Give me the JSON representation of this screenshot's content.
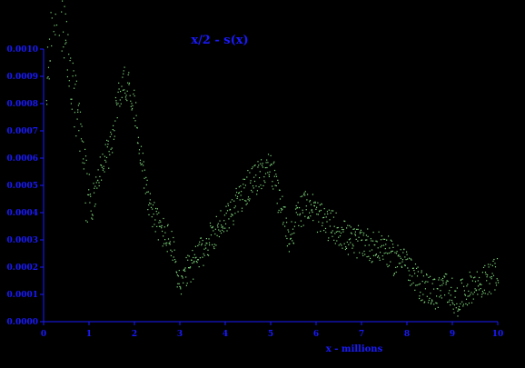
{
  "chart_data": {
    "type": "scatter",
    "title": "x/2  -  s(x)",
    "xlabel": "x - millions",
    "ylabel": "",
    "xlim": [
      0,
      10
    ],
    "ylim": [
      0,
      0.001
    ],
    "x_ticks": [
      "0",
      "1",
      "2",
      "3",
      "4",
      "5",
      "6",
      "7",
      "8",
      "9",
      "10"
    ],
    "y_ticks": [
      "0.0000",
      "0.0001",
      "0.0002",
      "0.0003",
      "0.0004",
      "0.0005",
      "0.0006",
      "0.0007",
      "0.0008",
      "0.0009",
      "0.0010"
    ],
    "colors": {
      "background": "#000000",
      "axes": "#1a1aff",
      "text": "#1a1aff",
      "points": "#7dd87a"
    },
    "grid": false,
    "series": [
      {
        "trend": {
          "x": [
            0.05,
            0.15,
            0.3,
            0.5,
            0.6,
            0.75,
            0.85,
            0.95,
            1.05,
            1.2,
            1.35,
            1.5,
            1.6,
            1.75,
            1.85,
            1.95,
            2.05,
            2.2,
            2.35,
            2.5,
            2.65,
            2.8,
            2.95,
            3.0,
            3.1,
            3.3,
            3.5,
            3.7,
            3.9,
            4.1,
            4.3,
            4.5,
            4.7,
            4.85,
            4.95,
            5.05,
            5.15,
            5.3,
            5.4,
            5.6,
            5.75,
            5.85,
            6.0,
            6.2,
            6.4,
            6.55,
            6.7,
            6.85,
            7.0,
            7.2,
            7.35,
            7.5,
            7.6,
            7.75,
            7.9,
            8.05,
            8.2,
            8.35,
            8.5,
            8.65,
            8.8,
            8.95,
            9.05,
            9.2,
            9.4,
            9.6,
            9.8,
            10.0
          ],
          "y": [
            0.0008,
            0.0011,
            0.0012,
            0.00098,
            0.00088,
            0.00072,
            0.00062,
            0.00046,
            0.00042,
            0.00055,
            0.0006,
            0.00065,
            0.0008,
            0.00088,
            0.00087,
            0.00083,
            0.00072,
            0.00054,
            0.00042,
            0.00036,
            0.00032,
            0.00029,
            0.00017,
            0.00012,
            0.00017,
            0.00022,
            0.00026,
            0.00032,
            0.00036,
            0.0004,
            0.00045,
            0.0005,
            0.00053,
            0.00056,
            0.00057,
            0.00054,
            0.00046,
            0.00038,
            0.0003,
            0.0004,
            0.00042,
            0.00044,
            0.00039,
            0.00036,
            0.00035,
            0.00033,
            0.0003,
            0.00029,
            0.0003,
            0.00028,
            0.00027,
            0.00028,
            0.00025,
            0.00022,
            0.00026,
            0.00018,
            0.00015,
            0.00013,
            0.00012,
            0.0001,
            0.00013,
            0.00012,
            7e-05,
            0.0001,
            0.00013,
            0.00014,
            0.00016,
            0.00018
          ]
        },
        "scatter_spread": 6e-05,
        "num_points": 1000
      }
    ]
  }
}
